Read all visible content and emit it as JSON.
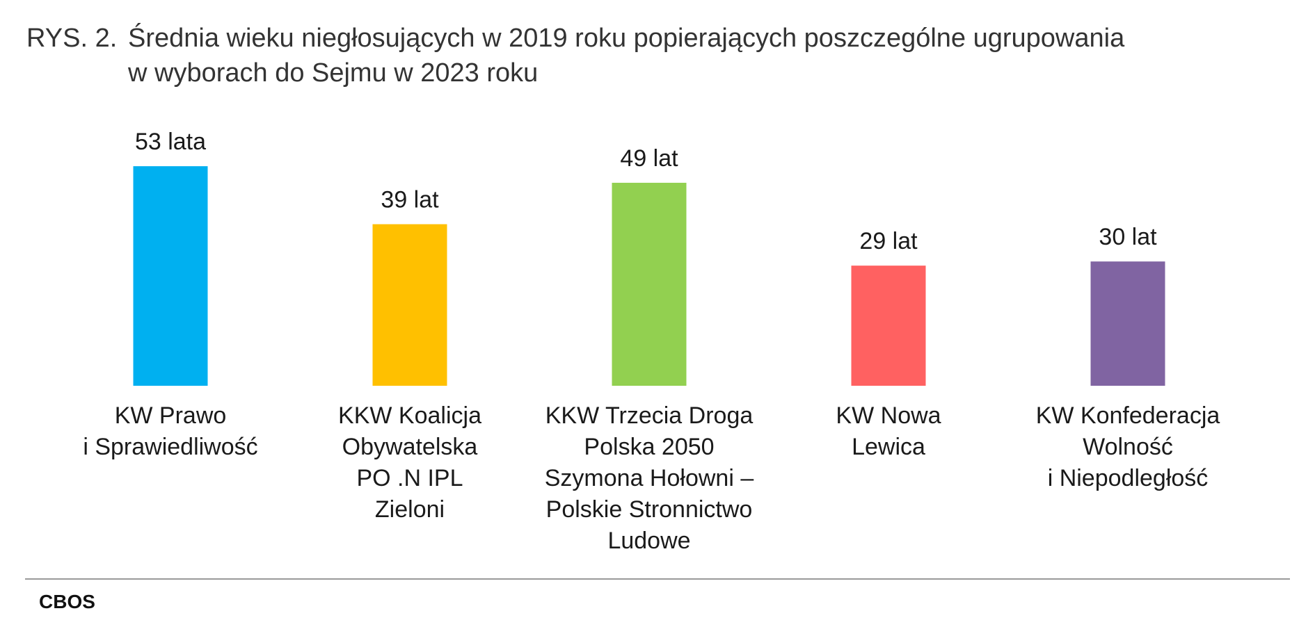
{
  "title": {
    "prefix": "RYS. 2.",
    "line1": "Średnia wieku niegłosujących w 2019 roku popierających poszczególne ugrupowania",
    "line2": "w wyborach do Sejmu w 2023 roku"
  },
  "source": "CBOS",
  "chart_data": {
    "type": "bar",
    "categories": [
      [
        "KW Prawo",
        "i Sprawiedliwość"
      ],
      [
        "KKW Koalicja",
        "Obywatelska",
        "PO .N IPL",
        "Zieloni"
      ],
      [
        "KKW Trzecia Droga",
        "Polska 2050",
        "Szymona Hołowni –",
        "Polskie Stronnictwo",
        "Ludowe"
      ],
      [
        "KW Nowa",
        "Lewica"
      ],
      [
        "KW Konfederacja",
        "Wolność",
        "i Niepodległość"
      ]
    ],
    "values": [
      53,
      39,
      49,
      29,
      30
    ],
    "value_labels": [
      "53 lata",
      "39 lat",
      "49 lat",
      "29 lat",
      "30 lat"
    ],
    "colors": [
      "#00B0F0",
      "#FFC000",
      "#92D050",
      "#FF6161",
      "#8064A2"
    ],
    "title": "RYS. 2. Średnia wieku niegłosujących w 2019 roku popierających poszczególne ugrupowania w wyborach do Sejmu w 2023 roku",
    "xlabel": "",
    "ylabel": "",
    "ylim": [
      0,
      60
    ],
    "grid": false,
    "legend": "none"
  }
}
